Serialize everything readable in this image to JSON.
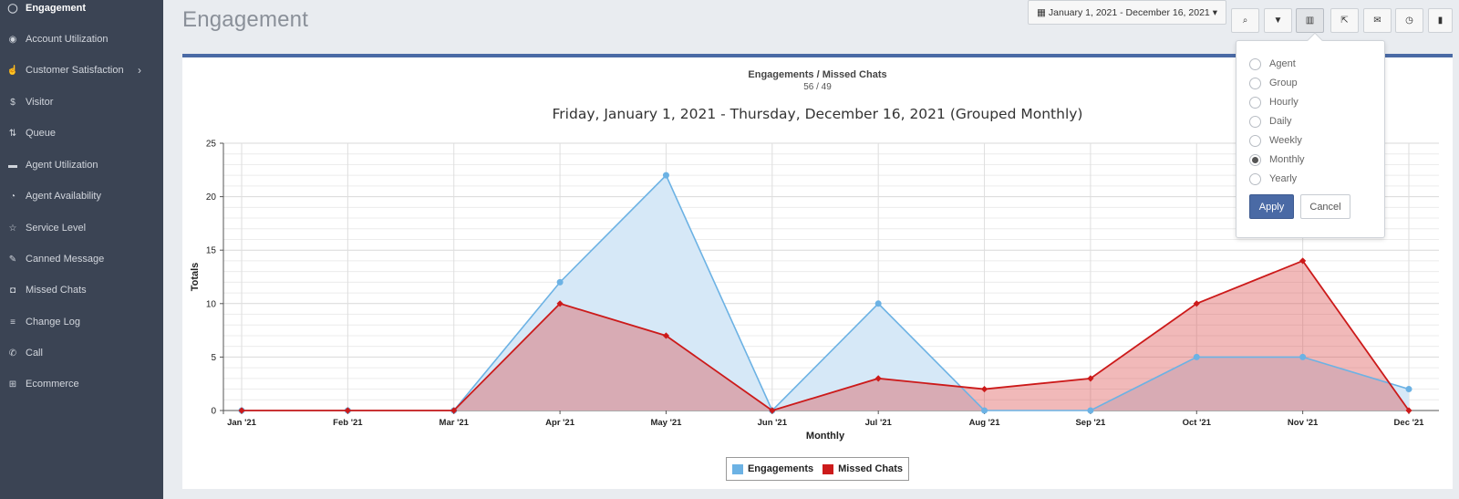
{
  "sidebar": {
    "items": [
      {
        "label": "Engagement",
        "icon": "chat-bubble-icon",
        "glyph": "◯",
        "active": true
      },
      {
        "label": "Account Utilization",
        "icon": "dashboard-icon",
        "glyph": "◉"
      },
      {
        "label": "Customer Satisfaction",
        "icon": "thumbs-up-icon",
        "glyph": "☝",
        "has_submenu": true,
        "chevron": "›"
      },
      {
        "label": "Visitor",
        "icon": "dollar-icon",
        "glyph": "$"
      },
      {
        "label": "Queue",
        "icon": "sort-icon",
        "glyph": "⇅"
      },
      {
        "label": "Agent Utilization",
        "icon": "card-icon",
        "glyph": "▬"
      },
      {
        "label": "Agent Availability",
        "icon": "clock-icon",
        "glyph": "◔"
      },
      {
        "label": "Service Level",
        "icon": "star-icon",
        "glyph": "☆"
      },
      {
        "label": "Canned Message",
        "icon": "edit-icon",
        "glyph": "✎"
      },
      {
        "label": "Missed Chats",
        "icon": "camera-icon",
        "glyph": "◘"
      },
      {
        "label": "Change Log",
        "icon": "database-icon",
        "glyph": "≡"
      },
      {
        "label": "Call",
        "icon": "phone-icon",
        "glyph": "✆"
      },
      {
        "label": "Ecommerce",
        "icon": "cart-icon",
        "glyph": "⊞"
      }
    ]
  },
  "header": {
    "title": "Engagement",
    "date_range": "January 1, 2021 - December 16, 2021",
    "date_caret": "▾",
    "date_icon": "▦",
    "toolbar_buttons": [
      {
        "name": "search-button",
        "icon": "search-icon",
        "glyph": "⌕"
      },
      {
        "name": "filter-button",
        "icon": "filter-icon",
        "glyph": "▼"
      },
      {
        "name": "chart-group-button",
        "icon": "bar-chart-icon",
        "glyph": "▥",
        "active": true
      },
      {
        "name": "share-button",
        "icon": "share-icon",
        "glyph": "⇱"
      },
      {
        "name": "email-button",
        "icon": "envelope-icon",
        "glyph": "✉"
      },
      {
        "name": "schedule-button",
        "icon": "clock-icon",
        "glyph": "◷"
      },
      {
        "name": "bookmark-button",
        "icon": "bookmark-icon",
        "glyph": "▮"
      }
    ]
  },
  "panel": {
    "subtitle": "Engagements / Missed Chats",
    "subcount": "56 / 49"
  },
  "chart_data": {
    "type": "area",
    "title": "Friday, January 1, 2021 - Thursday, December 16, 2021 (Grouped Monthly)",
    "xlabel": "Monthly",
    "ylabel": "Totals",
    "categories": [
      "Jan '21",
      "Feb '21",
      "Mar '21",
      "Apr '21",
      "May '21",
      "Jun '21",
      "Jul '21",
      "Aug '21",
      "Sep '21",
      "Oct '21",
      "Nov '21",
      "Dec '21"
    ],
    "ylim": [
      0,
      25
    ],
    "yticks": [
      0,
      5,
      10,
      15,
      20,
      25
    ],
    "grid": true,
    "legend_position": "bottom-center",
    "series": [
      {
        "name": "Engagements",
        "values": [
          0,
          0,
          0,
          12,
          22,
          0,
          10,
          0,
          0,
          5,
          5,
          2
        ],
        "color": "#6cb2e4",
        "fill": "#d6e8f7"
      },
      {
        "name": "Missed Chats",
        "values": [
          0,
          0,
          0,
          10,
          7,
          0,
          3,
          2,
          3,
          10,
          14,
          0
        ],
        "color": "#cc1a1a",
        "fill": "rgba(221,80,80,0.40)"
      }
    ]
  },
  "popover": {
    "options": [
      {
        "label": "Agent",
        "selected": false
      },
      {
        "label": "Group",
        "selected": false
      },
      {
        "label": "Hourly",
        "selected": false
      },
      {
        "label": "Daily",
        "selected": false
      },
      {
        "label": "Weekly",
        "selected": false
      },
      {
        "label": "Monthly",
        "selected": true
      },
      {
        "label": "Yearly",
        "selected": false
      }
    ],
    "apply_label": "Apply",
    "cancel_label": "Cancel"
  }
}
